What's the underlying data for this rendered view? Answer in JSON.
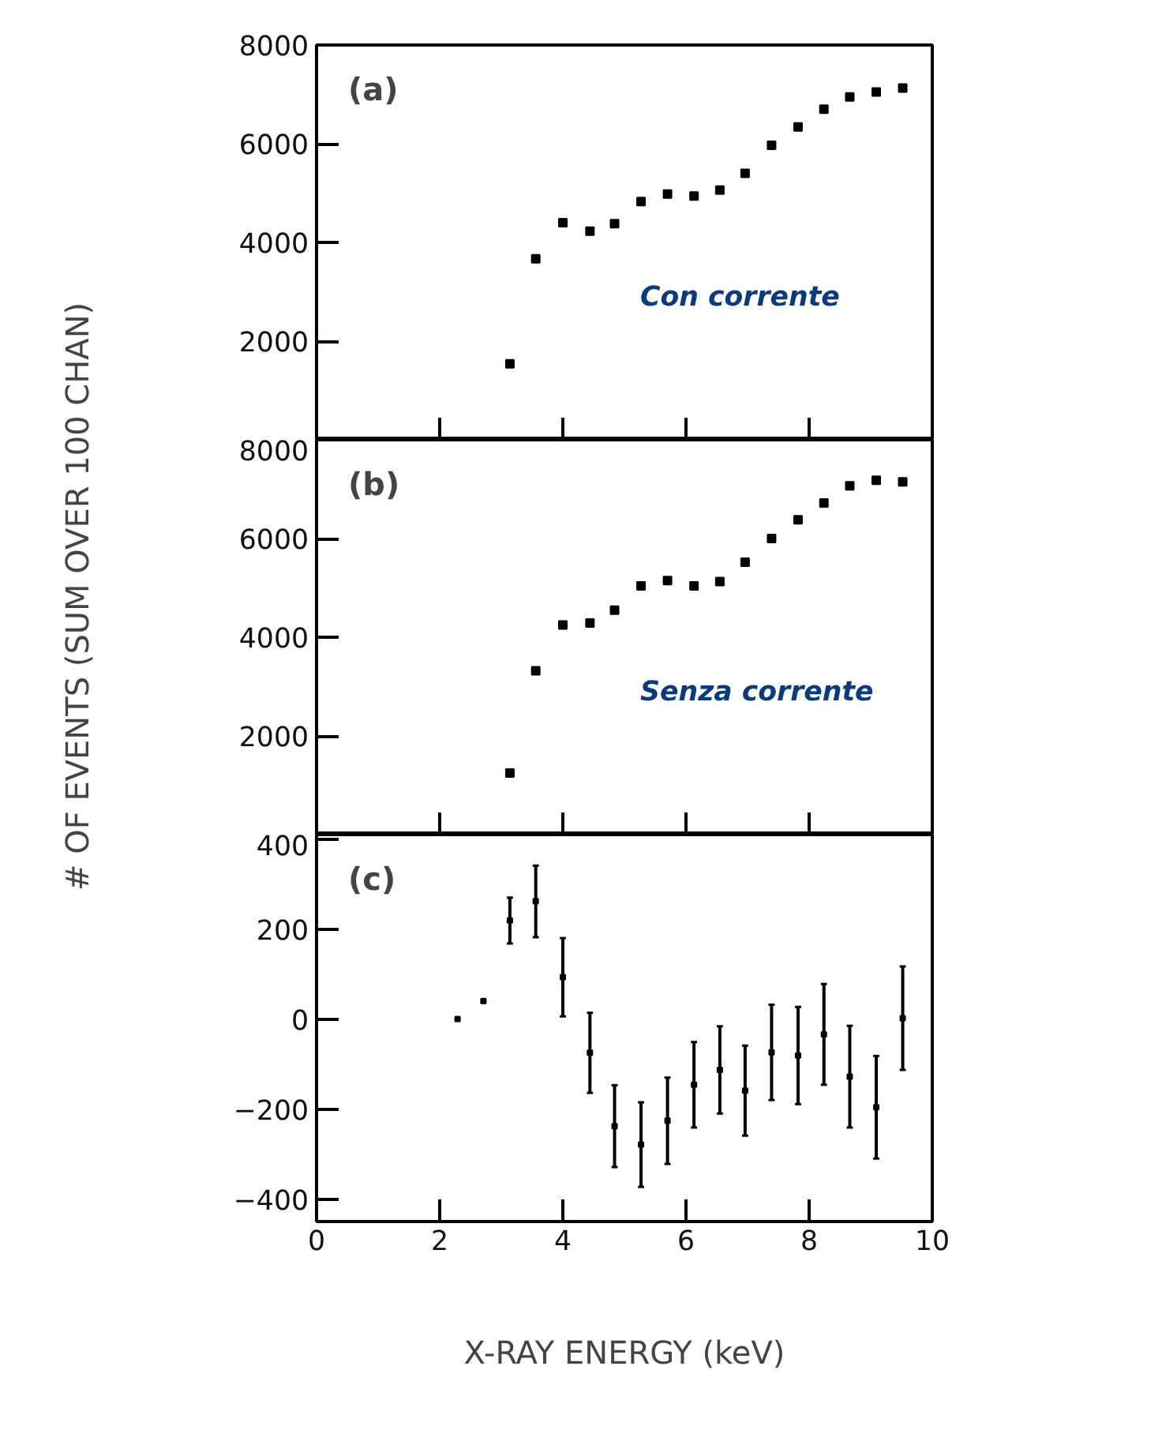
{
  "chart_data": [
    {
      "type": "scatter",
      "annotations": [
        "(a)",
        "Con corrente"
      ],
      "x": [
        3.14,
        3.56,
        4.0,
        4.44,
        4.84,
        5.27,
        5.7,
        6.13,
        6.55,
        6.96,
        7.39,
        7.82,
        8.24,
        8.66,
        9.09,
        9.52
      ],
      "series": [
        {
          "color": "#000000",
          "values": [
            1540,
            3670,
            4400,
            4230,
            4380,
            4830,
            4980,
            4940,
            5060,
            5400,
            5970,
            6340,
            6700,
            6950,
            7050,
            7130
          ]
        }
      ],
      "xlim": [
        0,
        10
      ],
      "xticks": [
        {
          "value": 0,
          "label": null
        },
        {
          "value": 2,
          "label": null
        },
        {
          "value": 4,
          "label": null
        },
        {
          "value": 6,
          "label": null
        },
        {
          "value": 8,
          "label": null
        },
        {
          "value": 10,
          "label": null
        }
      ],
      "ylim": [
        0,
        8000
      ],
      "yticks": [
        {
          "value": 0,
          "label": null
        },
        2000,
        4000,
        6000,
        8000
      ],
      "tick_labels": "y",
      "marker": "square",
      "grid": false
    },
    {
      "type": "scatter",
      "annotations": [
        "(b)",
        "Senza corrente"
      ],
      "ylabel": "# OF EVENTS (SUM OVER 100 CHAN)",
      "x": [
        3.14,
        3.56,
        4.0,
        4.44,
        4.84,
        5.27,
        5.7,
        6.13,
        6.55,
        6.96,
        7.39,
        7.82,
        8.24,
        8.66,
        9.09,
        9.52
      ],
      "series": [
        {
          "color": "#000000",
          "values": [
            1250,
            3320,
            4250,
            4290,
            4550,
            5040,
            5150,
            5040,
            5130,
            5520,
            6000,
            6380,
            6720,
            7070,
            7180,
            7150
          ]
        }
      ],
      "xlim": [
        0,
        10
      ],
      "xticks": [
        {
          "value": 0,
          "label": null
        },
        {
          "value": 2,
          "label": null
        },
        {
          "value": 4,
          "label": null
        },
        {
          "value": 6,
          "label": null
        },
        {
          "value": 8,
          "label": null
        },
        {
          "value": 10,
          "label": null
        }
      ],
      "ylim": [
        0,
        8000
      ],
      "yticks": [
        {
          "value": 0,
          "label": null
        },
        2000,
        4000,
        6000,
        8000
      ],
      "tick_labels": "y",
      "marker": "square",
      "grid": false
    },
    {
      "type": "scatter",
      "annotations": [
        "(c)"
      ],
      "xlabel": "X-RAY ENERGY (keV)",
      "x": [
        2.29,
        2.71,
        3.14,
        3.56,
        4.0,
        4.44,
        4.84,
        5.27,
        5.7,
        6.13,
        6.55,
        6.96,
        7.39,
        7.82,
        8.24,
        8.66,
        9.09,
        9.52
      ],
      "series": [
        {
          "color": "#000000",
          "values": [
            0,
            40,
            219,
            262,
            93,
            -75,
            -238,
            -279,
            -226,
            -146,
            -113,
            -159,
            -74,
            -81,
            -34,
            -128,
            -196,
            2
          ],
          "errors": [
            null,
            null,
            [
              168,
              270
            ],
            [
              182,
              341
            ],
            [
              6,
              180
            ],
            [
              -164,
              14
            ],
            [
              -329,
              -147
            ],
            [
              -373,
              -185
            ],
            [
              -322,
              -130
            ],
            [
              -241,
              -51
            ],
            [
              -210,
              -16
            ],
            [
              -259,
              -59
            ],
            [
              -180,
              32
            ],
            [
              -189,
              27
            ],
            [
              -146,
              78
            ],
            [
              -241,
              -15
            ],
            [
              -310,
              -82
            ],
            [
              -113,
              117
            ]
          ]
        }
      ],
      "xlim": [
        0,
        10
      ],
      "xticks": [
        0,
        2,
        4,
        6,
        8,
        10
      ],
      "ylim": [
        -450,
        410
      ],
      "yticks": [
        -400,
        -200,
        0,
        200,
        400
      ],
      "marker": "square",
      "grid": false
    }
  ]
}
